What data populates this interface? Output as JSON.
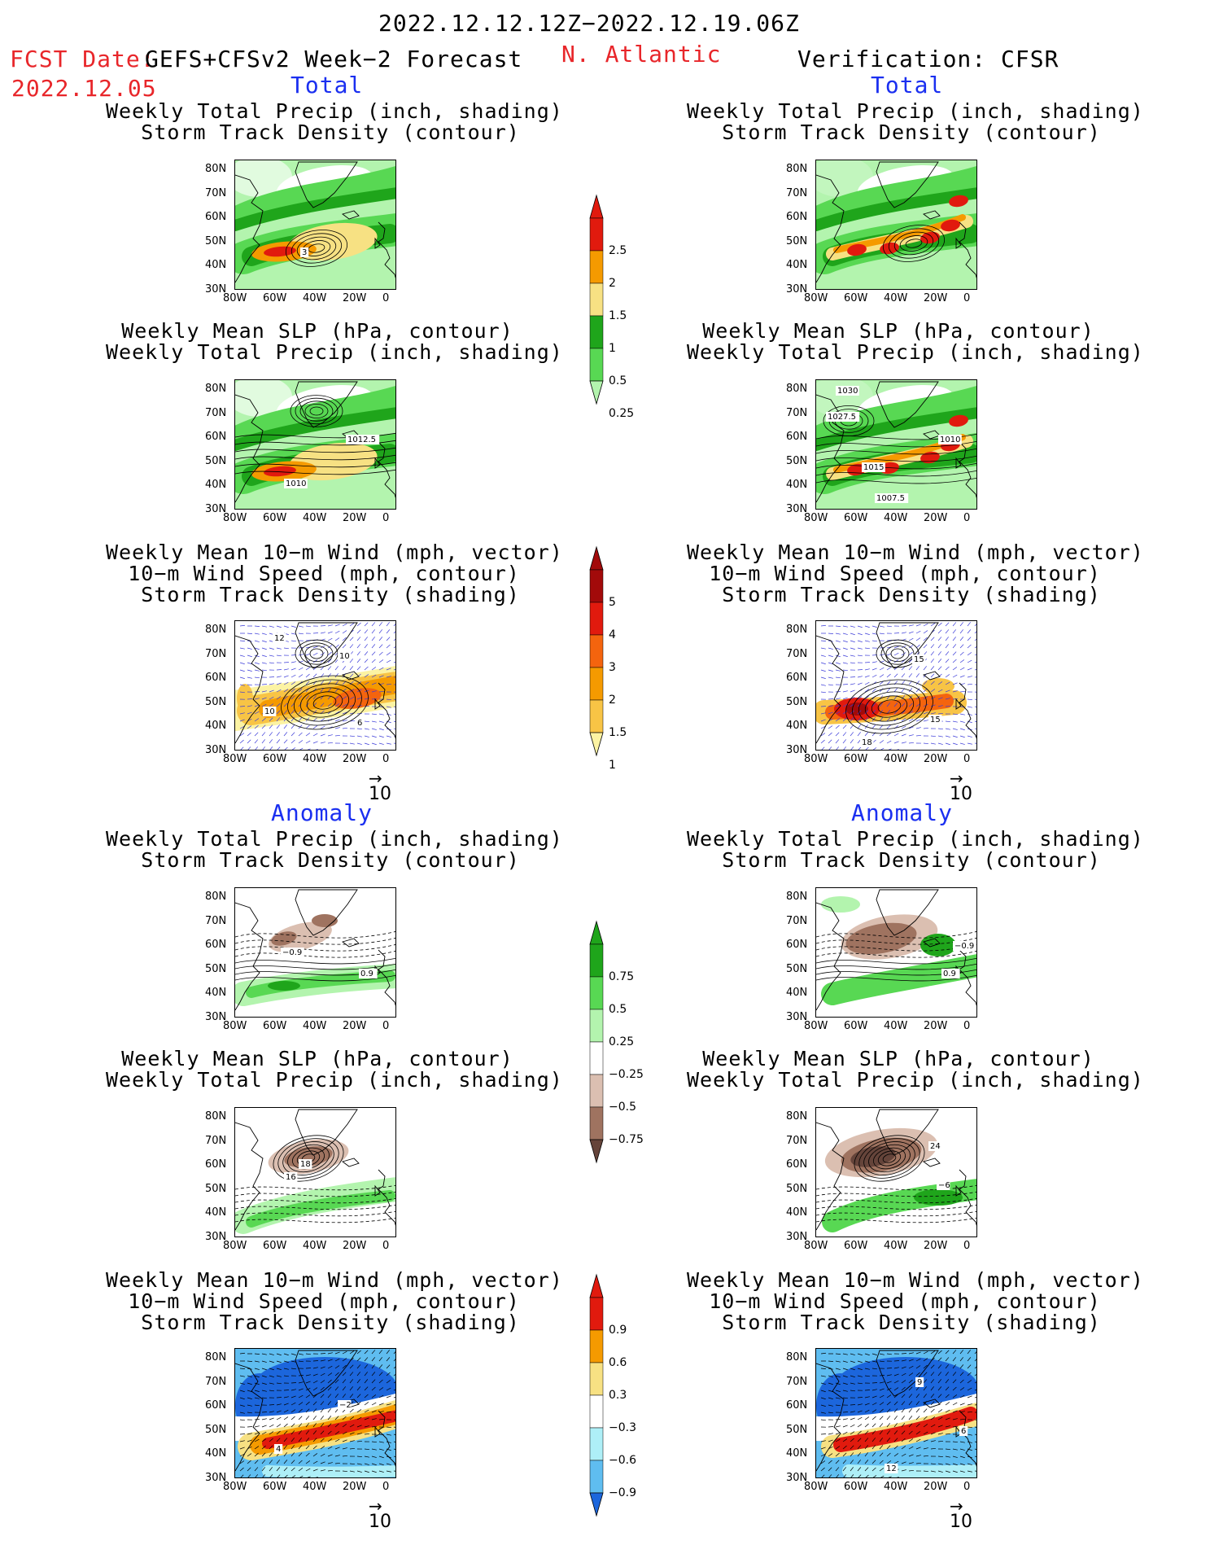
{
  "header": {
    "date_range": "2022.12.12.12Z−2022.12.19.06Z",
    "fcst_label": "FCST Date:",
    "model": "GEFS+CFSv2 Week−2 Forecast",
    "region": "N. Atlantic",
    "verification": "Verification: CFSR",
    "fcst_date": "2022.12.05"
  },
  "sections": {
    "total": "Total",
    "anomaly": "Anomaly"
  },
  "titles": {
    "precip_storm": "Weekly Total Precip (inch, shading)\n  Storm Track Density (contour)",
    "slp_precip": "Weekly Mean SLP (hPa, contour)\nWeekly Total Precip (inch, shading)",
    "wind_storm": "Weekly Mean 10−m Wind (mph, vector)\n 10−m Wind Speed (mph, contour)\n  Storm Track Density (shading)"
  },
  "axes": {
    "lat": [
      "80N",
      "70N",
      "60N",
      "50N",
      "40N",
      "30N"
    ],
    "lon": [
      "80W",
      "60W",
      "40W",
      "20W",
      "0"
    ]
  },
  "vector_ref": "10",
  "colorbars": {
    "precip_total": {
      "labels": [
        "2.5",
        "2",
        "1.5",
        "1",
        "0.5",
        "0.25"
      ],
      "colors": [
        "#e11a0e",
        "#f59a00",
        "#f7e183",
        "#1fa51b",
        "#58d853",
        "#b3f4ae"
      ]
    },
    "storm_total": {
      "labels": [
        "5",
        "4",
        "3",
        "2",
        "1.5",
        "1"
      ],
      "colors": [
        "#a20a0a",
        "#e11a0e",
        "#f4640e",
        "#f59a00",
        "#f8c445",
        "#fcf3a3"
      ]
    },
    "precip_anom": {
      "labels": [
        "0.75",
        "0.5",
        "0.25",
        "−0.25",
        "−0.5",
        "−0.75"
      ],
      "colors": [
        "#1fa51b",
        "#58d853",
        "#b3f4ae",
        "#ffffff",
        "#dbbfb1",
        "#9f7360",
        "#65443a"
      ]
    },
    "storm_anom": {
      "labels": [
        "0.9",
        "0.6",
        "0.3",
        "−0.3",
        "−0.6",
        "−0.9"
      ],
      "colors": [
        "#e11a0e",
        "#f59a00",
        "#f7e183",
        "#ffffff",
        "#aeeff7",
        "#5fbdf0",
        "#1c66dc"
      ]
    }
  },
  "contour_labels": {
    "l_slp_total": "1012.5",
    "l_slp_total_b": "1010",
    "r_slp_total_a": "1030",
    "r_slp_total_b": "1027.5",
    "r_slp_total_c": "1010",
    "r_slp_total_d": "1015",
    "r_slp_total_e": "1007.5",
    "l_precip_storm_a": "3",
    "l_wind_a": "12",
    "l_wind_b": "10",
    "l_wind_c": "10",
    "l_wind_d": "6",
    "r_wind_a": "15",
    "r_wind_b": "18",
    "r_wind_c": "15",
    "l_anom_ps_a": "−0.9",
    "l_anom_ps_b": "0.9",
    "r_anom_ps_a": "−0.9",
    "r_anom_ps_b": "0.9",
    "l_anom_slp_a": "18",
    "l_anom_slp_b": "16",
    "r_anom_slp_a": "24",
    "r_anom_slp_b": "−6",
    "l_anom_wind_a": "−2",
    "l_anom_wind_b": "4",
    "r_anom_wind_a": "9",
    "r_anom_wind_b": "6",
    "r_anom_wind_c": "12"
  }
}
